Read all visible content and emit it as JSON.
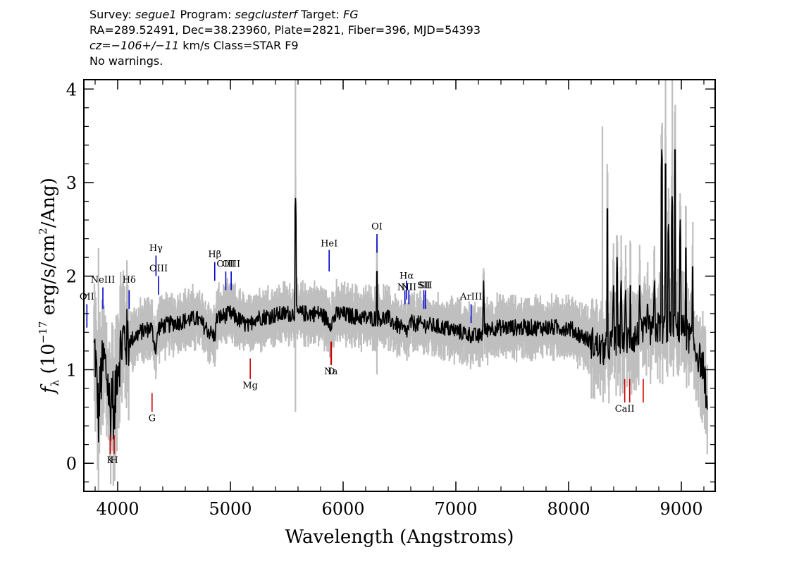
{
  "header": {
    "l1_a": "Survey: ",
    "l1_b": "segue1",
    "l1_c": " Program: ",
    "l1_d": "segclusterf",
    "l1_e": " Target: ",
    "l1_f": "FG",
    "l2": "RA=289.52491, Dec=38.23960, Plate=2821, Fiber=396, MJD=54393",
    "l3_a": "cz=−106+/−11",
    "l3_b": " km/s Class=STAR F9",
    "l4": "No warnings."
  },
  "chart_data": {
    "type": "line",
    "title": "",
    "xlabel": "Wavelength (Angstroms)",
    "ylabel": "fλ (10⁻¹⁷ erg/s/cm²/Ang)",
    "ylabel_parts": {
      "f": "f",
      "lambda": "λ",
      "a": " (10",
      "exp1": "−17",
      "b": " erg/s/cm",
      "exp2": "2",
      "c": "/Ang)"
    },
    "xlim": [
      3700,
      9300
    ],
    "ylim": [
      -0.3,
      4.1
    ],
    "xticks": [
      4000,
      5000,
      6000,
      7000,
      8000,
      9000
    ],
    "yticks": [
      0,
      1,
      2,
      3,
      4
    ],
    "xtick_labels": [
      "4000",
      "5000",
      "6000",
      "7000",
      "8000",
      "9000"
    ],
    "ytick_labels": [
      "0",
      "1",
      "2",
      "3",
      "4"
    ],
    "colors": {
      "flux": "#000000",
      "error": "#bfbfbf",
      "emission": "#0000cc",
      "absorption": "#cc0000"
    },
    "flux_anchors": [
      [
        3800,
        1.2
      ],
      [
        3830,
        0.5
      ],
      [
        3850,
        0.9
      ],
      [
        3880,
        1.1
      ],
      [
        3910,
        0.9
      ],
      [
        3935,
        0.5
      ],
      [
        3950,
        0.9
      ],
      [
        3970,
        0.4
      ],
      [
        3990,
        1.0
      ],
      [
        4050,
        1.35
      ],
      [
        4100,
        1.3
      ],
      [
        4200,
        1.4
      ],
      [
        4300,
        1.45
      ],
      [
        4340,
        1.2
      ],
      [
        4360,
        1.45
      ],
      [
        4500,
        1.5
      ],
      [
        4700,
        1.55
      ],
      [
        4860,
        1.35
      ],
      [
        4880,
        1.55
      ],
      [
        5000,
        1.6
      ],
      [
        5170,
        1.45
      ],
      [
        5200,
        1.55
      ],
      [
        5500,
        1.6
      ],
      [
        5800,
        1.6
      ],
      [
        5890,
        1.5
      ],
      [
        5950,
        1.6
      ],
      [
        6200,
        1.55
      ],
      [
        6400,
        1.55
      ],
      [
        6560,
        1.4
      ],
      [
        6600,
        1.5
      ],
      [
        6900,
        1.45
      ],
      [
        7200,
        1.35
      ],
      [
        7300,
        1.45
      ],
      [
        7500,
        1.45
      ],
      [
        7800,
        1.45
      ],
      [
        8000,
        1.45
      ],
      [
        8200,
        1.3
      ],
      [
        8300,
        1.2
      ],
      [
        8400,
        1.3
      ],
      [
        8600,
        1.35
      ],
      [
        8800,
        1.45
      ],
      [
        9000,
        1.45
      ],
      [
        9100,
        1.3
      ],
      [
        9200,
        1.0
      ],
      [
        9230,
        0.6
      ]
    ],
    "flux_spikes": [
      [
        5577,
        2.88
      ],
      [
        6300,
        2.15
      ],
      [
        7246,
        1.95
      ],
      [
        8344,
        2.82
      ],
      [
        8399,
        1.95
      ],
      [
        8430,
        2.2
      ],
      [
        8465,
        2.0
      ],
      [
        8505,
        1.9
      ],
      [
        8548,
        2.0
      ],
      [
        8630,
        1.9
      ],
      [
        8700,
        1.8
      ],
      [
        8761,
        2.0
      ],
      [
        8827,
        3.4
      ],
      [
        8860,
        3.3
      ],
      [
        8885,
        2.6
      ],
      [
        8919,
        2.9
      ],
      [
        8944,
        3.45
      ],
      [
        8990,
        2.6
      ],
      [
        9040,
        2.4
      ],
      [
        9100,
        2.2
      ]
    ],
    "emission_lines": [
      {
        "label": "OII",
        "wave": 3727,
        "y0": 1.45,
        "y1": 1.7,
        "ly": 1.75
      },
      {
        "label": "NeIII",
        "wave": 3869,
        "y0": 1.65,
        "y1": 1.88,
        "ly": 1.93
      },
      {
        "label": "Hδ",
        "wave": 4102,
        "y0": 1.65,
        "y1": 1.85,
        "ly": 1.93
      },
      {
        "label": "Hγ",
        "wave": 4340,
        "y0": 2.0,
        "y1": 2.22,
        "ly": 2.27
      },
      {
        "label": "OIII",
        "wave": 4363,
        "y0": 1.8,
        "y1": 2.0,
        "ly": 2.05
      },
      {
        "label": "Hβ",
        "wave": 4861,
        "y0": 1.95,
        "y1": 2.15,
        "ly": 2.2
      },
      {
        "label": "OIII",
        "wave": 4959,
        "y0": 1.85,
        "y1": 2.05,
        "ly": 2.1
      },
      {
        "label": "OIII",
        "wave": 5007,
        "y0": 1.85,
        "y1": 2.05,
        "ly": 2.1
      },
      {
        "label": "HeI",
        "wave": 5876,
        "y0": 2.05,
        "y1": 2.28,
        "ly": 2.32
      },
      {
        "label": "OI",
        "wave": 6300,
        "y0": 2.25,
        "y1": 2.45,
        "ly": 2.5
      },
      {
        "label": "NII",
        "wave": 6548,
        "y0": 1.7,
        "y1": 1.85,
        "ly": 1.85
      },
      {
        "label": "Hα",
        "wave": 6563,
        "y0": 1.75,
        "y1": 1.95,
        "ly": 1.97
      },
      {
        "label": "NII",
        "wave": 6583,
        "y0": 1.7,
        "y1": 1.85,
        "ly": 1.85
      },
      {
        "label": "SII",
        "wave": 6716,
        "y0": 1.65,
        "y1": 1.85,
        "ly": 1.87
      },
      {
        "label": "SII",
        "wave": 6731,
        "y0": 1.65,
        "y1": 1.85,
        "ly": 1.87
      },
      {
        "label": "ArIII",
        "wave": 7135,
        "y0": 1.5,
        "y1": 1.7,
        "ly": 1.75
      }
    ],
    "absorption_lines": [
      {
        "label": "K",
        "wave": 3934,
        "y0": 0.1,
        "y1": 0.3,
        "ly": 0.0
      },
      {
        "label": "H",
        "wave": 3969,
        "y0": 0.1,
        "y1": 0.3,
        "ly": 0.0
      },
      {
        "label": "G",
        "wave": 4305,
        "y0": 0.55,
        "y1": 0.75,
        "ly": 0.45
      },
      {
        "label": "Mg",
        "wave": 5176,
        "y0": 0.9,
        "y1": 1.12,
        "ly": 0.8
      },
      {
        "label": "Na",
        "wave": 5892,
        "y0": 1.05,
        "y1": 1.3,
        "ly": 0.95
      },
      {
        "label": "D",
        "wave": 5896,
        "y0": 1.05,
        "y1": 1.3,
        "ly": 0.95
      },
      {
        "label": "CaII",
        "wave": 8498,
        "y0": 0.65,
        "y1": 0.9,
        "ly": 0.55
      },
      {
        "label": "",
        "wave": 8542,
        "y0": 0.65,
        "y1": 0.9,
        "ly": 0.55
      },
      {
        "label": "",
        "wave": 8662,
        "y0": 0.65,
        "y1": 0.9,
        "ly": 0.55
      }
    ]
  }
}
